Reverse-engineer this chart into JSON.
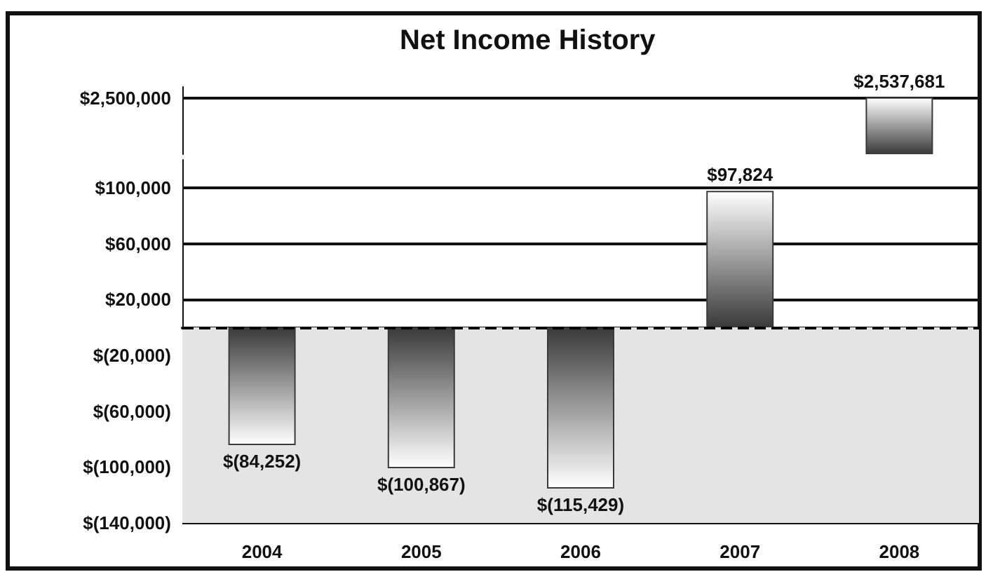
{
  "chart_data": [
    {
      "type": "bar",
      "title": "Net Income History",
      "categories": [
        "2004",
        "2005",
        "2006",
        "2007",
        "2008"
      ],
      "series": [
        {
          "color": "#3a3a3a",
          "values": [
            null,
            null,
            null,
            null,
            2537681
          ],
          "value_labels": [
            null,
            null,
            null,
            null,
            "$2,537,681"
          ]
        }
      ],
      "ylim": [
        0,
        3000000
      ],
      "yticks": [
        {
          "value": 2500000,
          "label": "$2,500,000"
        }
      ],
      "grid": "y",
      "tick_labels": "y"
    },
    {
      "type": "bar",
      "categories": [
        "2004",
        "2005",
        "2006",
        "2007",
        "2008"
      ],
      "series": [
        {
          "color": "#3a3a3a",
          "values": [
            -84252,
            -100867,
            -115429,
            97824,
            null
          ],
          "value_labels": [
            "$(84,252)",
            "$(100,867)",
            "$(115,429)",
            "$97,824",
            null
          ]
        }
      ],
      "ylim": [
        -140000,
        120000
      ],
      "yticks": [
        {
          "value": -140000,
          "label": "$(140,000)"
        },
        {
          "value": -100000,
          "label": "$(100,000)"
        },
        {
          "value": -60000,
          "label": "$(60,000)"
        },
        {
          "value": -20000,
          "label": "$(20,000)"
        },
        {
          "value": 20000,
          "label": "$20,000"
        },
        {
          "value": 60000,
          "label": "$60,000"
        },
        {
          "value": 100000,
          "label": "$100,000"
        }
      ],
      "grid": "y",
      "ref_lines": [
        {
          "axis": "y",
          "value": 0,
          "line_style": "dashed",
          "color": "#000000"
        }
      ],
      "bands": [
        {
          "axis": "y",
          "from": -140000,
          "to": 0,
          "color": "#e4e4e4"
        }
      ]
    }
  ]
}
